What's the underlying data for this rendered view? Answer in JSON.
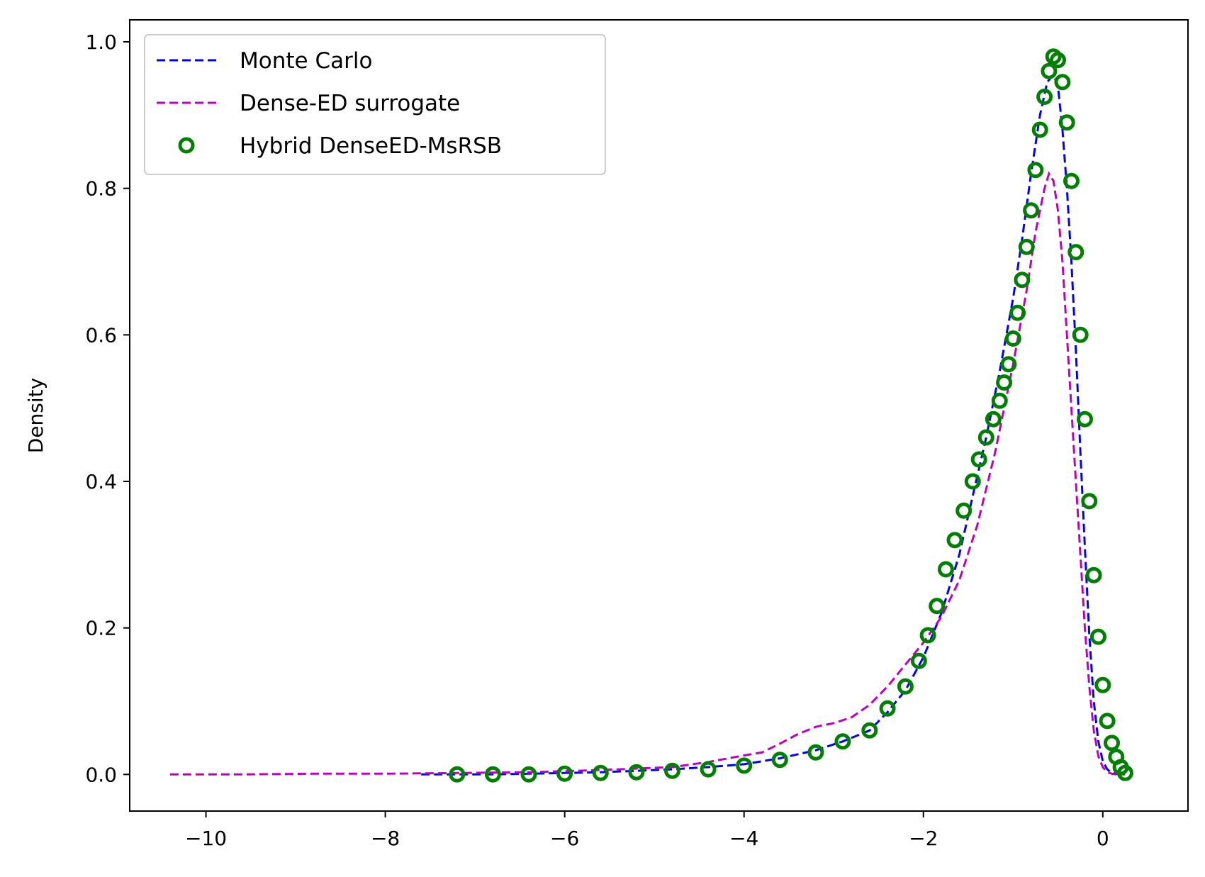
{
  "chart_data": {
    "type": "line",
    "title": "",
    "xlabel": "",
    "ylabel": "Density",
    "xlim": [
      -10.85,
      0.95
    ],
    "ylim": [
      -0.05,
      1.03
    ],
    "xticks": [
      -10,
      -8,
      -6,
      -4,
      -2,
      0
    ],
    "yticks": [
      0.0,
      0.2,
      0.4,
      0.6,
      0.8,
      1.0
    ],
    "xtick_labels": [
      "−10",
      "−8",
      "−6",
      "−4",
      "−2",
      "0"
    ],
    "ytick_labels": [
      "0.0",
      "0.2",
      "0.4",
      "0.6",
      "0.8",
      "1.0"
    ],
    "grid": false,
    "legend_position": "top-left",
    "series": [
      {
        "name": "Monte Carlo",
        "style": "dashed-line",
        "color": "#0000ff",
        "x": [
          -7.6,
          -7.2,
          -6.8,
          -6.4,
          -6.0,
          -5.6,
          -5.2,
          -4.8,
          -4.4,
          -4.0,
          -3.6,
          -3.2,
          -2.9,
          -2.6,
          -2.4,
          -2.2,
          -2.0,
          -1.8,
          -1.6,
          -1.45,
          -1.3,
          -1.15,
          -1.0,
          -0.9,
          -0.8,
          -0.7,
          -0.62,
          -0.55,
          -0.5,
          -0.45,
          -0.4,
          -0.35,
          -0.3,
          -0.25,
          -0.2,
          -0.15,
          -0.1,
          -0.05,
          0.0,
          0.05,
          0.1,
          0.15,
          0.2,
          0.24
        ],
        "y": [
          0.0,
          0.0,
          0.0,
          0.001,
          0.002,
          0.003,
          0.005,
          0.007,
          0.01,
          0.014,
          0.022,
          0.033,
          0.045,
          0.06,
          0.085,
          0.115,
          0.16,
          0.22,
          0.3,
          0.38,
          0.46,
          0.55,
          0.65,
          0.73,
          0.82,
          0.9,
          0.945,
          0.955,
          0.94,
          0.88,
          0.8,
          0.7,
          0.58,
          0.44,
          0.31,
          0.19,
          0.1,
          0.045,
          0.018,
          0.007,
          0.002,
          0.001,
          0.0,
          0.0
        ]
      },
      {
        "name": "Dense-ED surrogate",
        "style": "dashed-line",
        "color": "#bf00bf",
        "x": [
          -10.4,
          -9.6,
          -8.8,
          -8.0,
          -7.2,
          -6.4,
          -5.6,
          -4.8,
          -4.4,
          -4.0,
          -3.8,
          -3.6,
          -3.4,
          -3.2,
          -3.0,
          -2.8,
          -2.6,
          -2.4,
          -2.2,
          -2.0,
          -1.8,
          -1.6,
          -1.4,
          -1.2,
          -1.0,
          -0.85,
          -0.75,
          -0.65,
          -0.6,
          -0.55,
          -0.5,
          -0.45,
          -0.4,
          -0.35,
          -0.3,
          -0.25,
          -0.2,
          -0.15,
          -0.1,
          -0.05,
          0.0,
          0.05,
          0.1,
          0.15,
          0.2,
          0.25
        ],
        "y": [
          0.0,
          0.0,
          0.001,
          0.001,
          0.002,
          0.003,
          0.006,
          0.01,
          0.017,
          0.026,
          0.03,
          0.042,
          0.055,
          0.065,
          0.07,
          0.078,
          0.095,
          0.12,
          0.15,
          0.18,
          0.215,
          0.265,
          0.34,
          0.44,
          0.56,
          0.66,
          0.74,
          0.8,
          0.82,
          0.81,
          0.77,
          0.7,
          0.6,
          0.5,
          0.4,
          0.3,
          0.2,
          0.12,
          0.06,
          0.025,
          0.01,
          0.003,
          0.001,
          0.0,
          0.0,
          0.0
        ]
      },
      {
        "name": "Hybrid DenseED-MsRSB",
        "style": "open-circle-markers",
        "color": "#008000",
        "x": [
          -7.2,
          -6.8,
          -6.4,
          -6.0,
          -5.6,
          -5.2,
          -4.8,
          -4.4,
          -4.0,
          -3.6,
          -3.2,
          -2.9,
          -2.6,
          -2.4,
          -2.2,
          -2.05,
          -1.95,
          -1.85,
          -1.75,
          -1.65,
          -1.55,
          -1.45,
          -1.38,
          -1.3,
          -1.22,
          -1.15,
          -1.1,
          -1.05,
          -1.0,
          -0.95,
          -0.9,
          -0.85,
          -0.8,
          -0.75,
          -0.7,
          -0.65,
          -0.6,
          -0.55,
          -0.5,
          -0.45,
          -0.4,
          -0.35,
          -0.3,
          -0.25,
          -0.2,
          -0.15,
          -0.1,
          -0.05,
          0.0,
          0.05,
          0.1,
          0.15,
          0.2,
          0.25
        ],
        "y": [
          0.0,
          0.0,
          0.0,
          0.001,
          0.002,
          0.003,
          0.005,
          0.007,
          0.012,
          0.02,
          0.03,
          0.045,
          0.06,
          0.09,
          0.12,
          0.155,
          0.19,
          0.23,
          0.28,
          0.32,
          0.36,
          0.4,
          0.43,
          0.46,
          0.485,
          0.51,
          0.535,
          0.56,
          0.595,
          0.63,
          0.675,
          0.72,
          0.77,
          0.825,
          0.88,
          0.925,
          0.96,
          0.98,
          0.975,
          0.945,
          0.89,
          0.81,
          0.713,
          0.6,
          0.485,
          0.373,
          0.272,
          0.188,
          0.122,
          0.073,
          0.043,
          0.024,
          0.01,
          0.002
        ]
      }
    ]
  }
}
